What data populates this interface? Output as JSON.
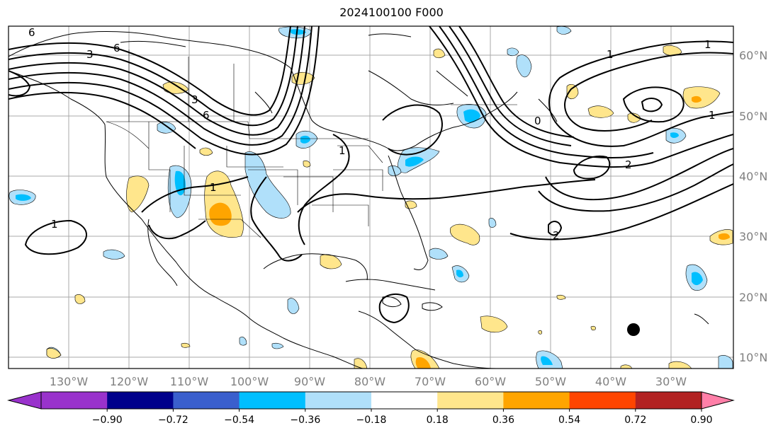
{
  "title": "2024100100 F000",
  "map": {
    "longitude_labels": [
      "130°W",
      "120°W",
      "110°W",
      "100°W",
      "90°W",
      "80°W",
      "70°W",
      "60°W",
      "50°W",
      "40°W",
      "30°W"
    ],
    "latitude_labels": [
      "60°N",
      "50°N",
      "40°N",
      "30°N",
      "20°N",
      "10°N"
    ],
    "contour_labels": [
      "6",
      "3",
      "6",
      "3",
      "6",
      "1",
      "1",
      "1",
      "1",
      "2",
      "2",
      "1",
      "1",
      "0"
    ]
  },
  "colorbar": {
    "ticks": [
      "−0.90",
      "−0.72",
      "−0.54",
      "−0.36",
      "−0.18",
      "0.18",
      "0.36",
      "0.54",
      "0.72",
      "0.90"
    ],
    "colors": [
      "#9932cc",
      "#00008b",
      "#3a5fcd",
      "#00bfff",
      "#b0e0fa",
      "#ffffff",
      "#ffe68c",
      "#ffa500",
      "#ff4500",
      "#b22222"
    ],
    "under_color": "#9932cc",
    "over_color": "#ff7fa8"
  }
}
